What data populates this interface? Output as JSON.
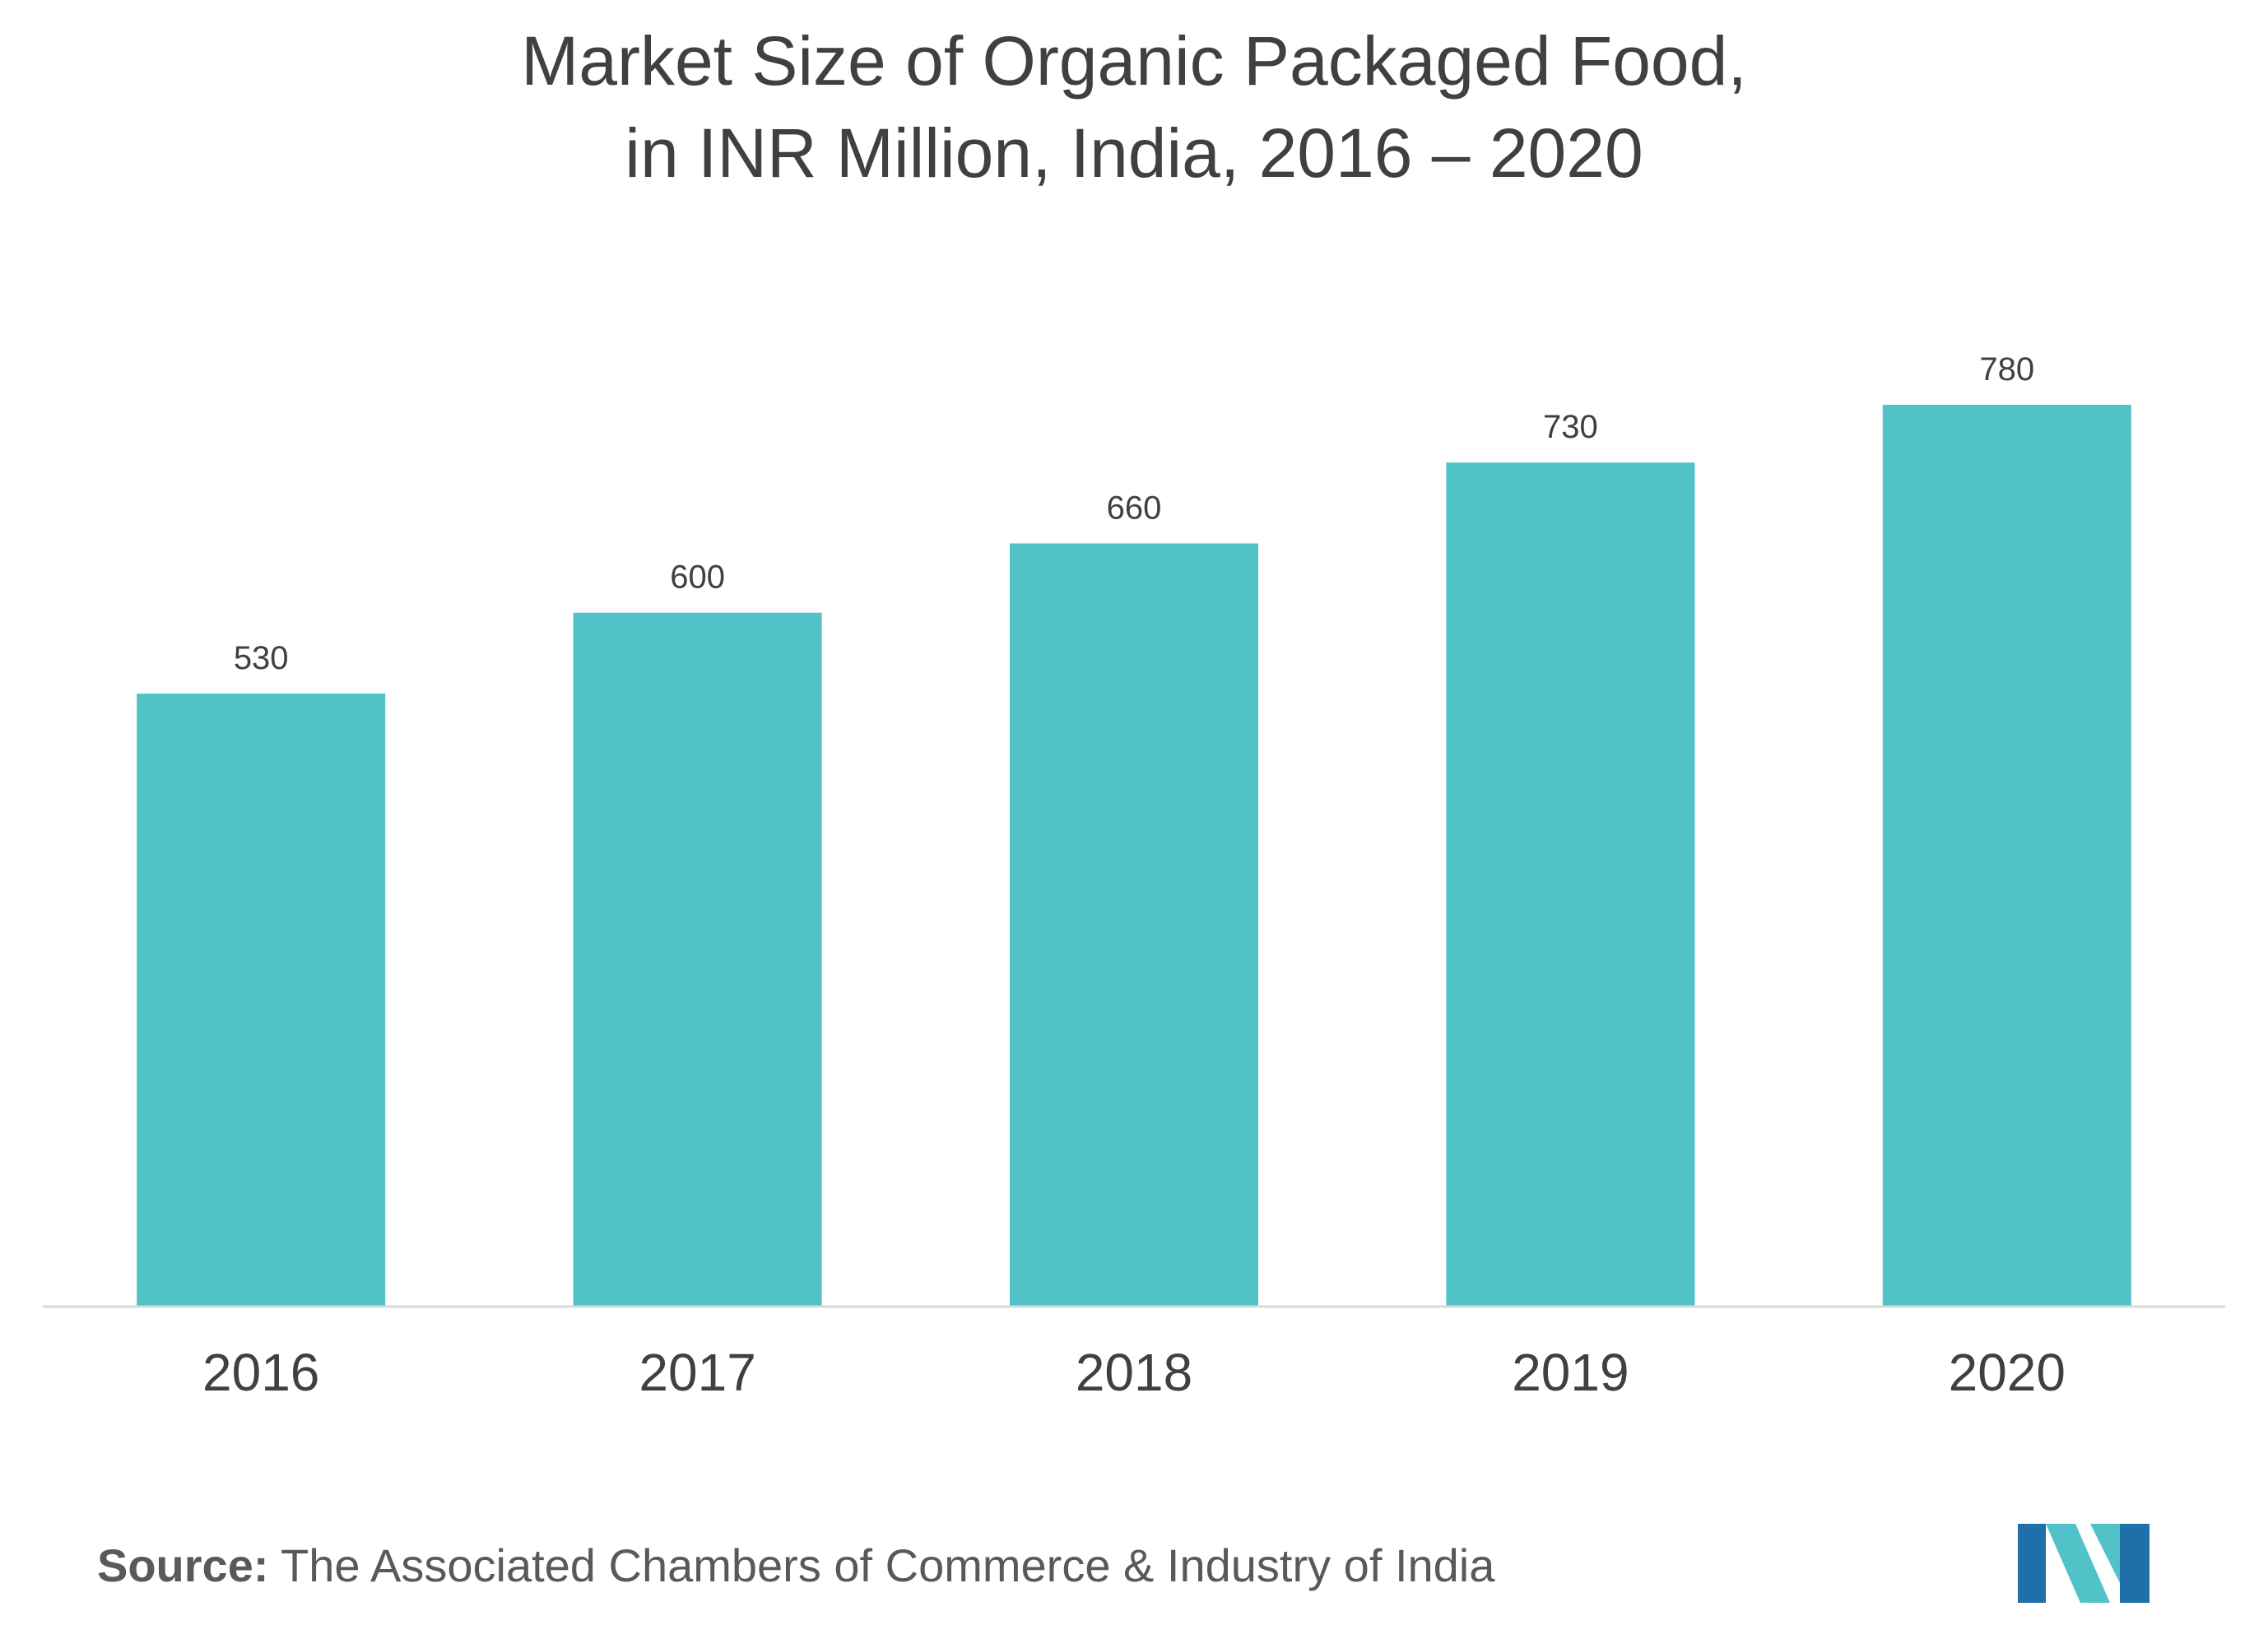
{
  "chart_data": {
    "type": "bar",
    "title_lines": [
      "Market Size of Organic Packaged Food,",
      "in INR Million, India, 2016 – 2020"
    ],
    "categories": [
      "2016",
      "2017",
      "2018",
      "2019",
      "2020"
    ],
    "values": [
      530,
      600,
      660,
      730,
      780
    ],
    "data_labels": [
      "530",
      "600",
      "660",
      "730",
      "780"
    ],
    "xlabel": "",
    "ylabel": "",
    "ylim": [
      0,
      780
    ],
    "grid": false,
    "legend": "none",
    "bar_color": "#52c2c9",
    "axis_color": "#d9d9d9"
  },
  "source": {
    "label": "Source:",
    "text": " The Associated Chambers of Commerce & Industry of India"
  },
  "logo": {
    "colors": [
      "#1f6fa8",
      "#52c2c9"
    ]
  }
}
